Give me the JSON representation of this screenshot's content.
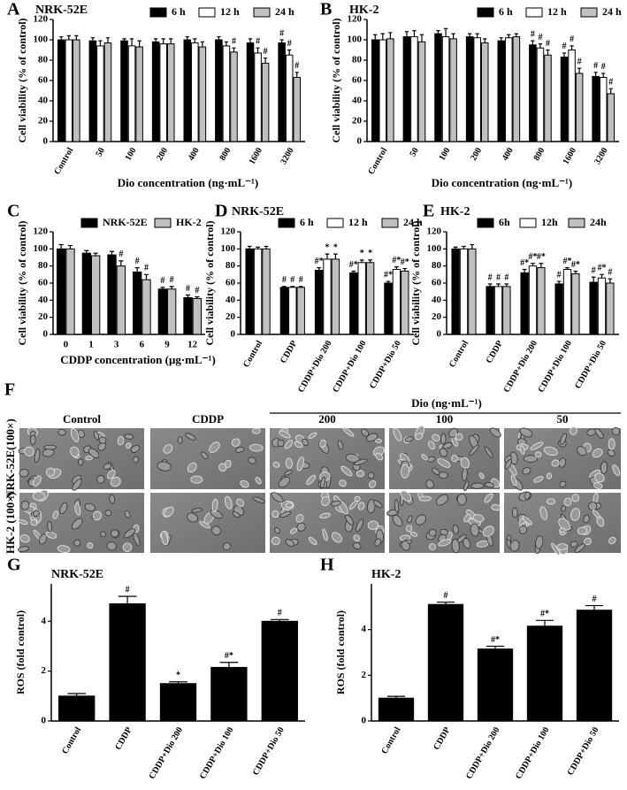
{
  "chart_data": [
    {
      "type": "bar",
      "panel": "A",
      "title": "NRK-52E",
      "categories": [
        "Control",
        "50",
        "100",
        "200",
        "400",
        "800",
        "1600",
        "3200"
      ],
      "rotate_labels": true,
      "x_label": "Dio concentration (ng·mL⁻¹)",
      "y_label": "Cell viability (% of control)",
      "ylim": [
        0,
        120
      ],
      "yticks": [
        0,
        20,
        40,
        60,
        80,
        100,
        120
      ],
      "series": [
        {
          "name": "6 h",
          "color": "#000000",
          "values": [
            100,
            99,
            99,
            98,
            100,
            100,
            97,
            97
          ],
          "errors": [
            3,
            3,
            2,
            3,
            3,
            3,
            4,
            3
          ],
          "annotations": [
            null,
            null,
            null,
            null,
            null,
            null,
            null,
            "#"
          ]
        },
        {
          "name": "12 h",
          "color": "#ffffff",
          "values": [
            100,
            94,
            94,
            96,
            97,
            94,
            87,
            85
          ],
          "errors": [
            4,
            5,
            7,
            5,
            4,
            4,
            5,
            5
          ],
          "annotations": [
            null,
            null,
            null,
            null,
            null,
            null,
            "#",
            "#"
          ]
        },
        {
          "name": "24 h",
          "color": "#c0c0c0",
          "values": [
            100,
            97,
            93,
            96,
            93,
            88,
            77,
            63
          ],
          "errors": [
            4,
            5,
            6,
            5,
            5,
            4,
            5,
            5
          ],
          "annotations": [
            null,
            null,
            null,
            null,
            null,
            "#",
            "#",
            "#"
          ]
        }
      ]
    },
    {
      "type": "bar",
      "panel": "B",
      "title": "HK-2",
      "categories": [
        "Control",
        "50",
        "100",
        "200",
        "400",
        "800",
        "1600",
        "3200"
      ],
      "rotate_labels": true,
      "x_label": "Dio concentration (ng·mL⁻¹)",
      "y_label": "Cell viability (% of control)",
      "ylim": [
        0,
        120
      ],
      "yticks": [
        0,
        20,
        40,
        60,
        80,
        100,
        120
      ],
      "series": [
        {
          "name": "6 h",
          "color": "#000000",
          "values": [
            100,
            103,
            106,
            103,
            99,
            95,
            83,
            64
          ],
          "errors": [
            5,
            5,
            3,
            3,
            3,
            4,
            4,
            4
          ],
          "annotations": [
            null,
            null,
            null,
            null,
            null,
            "#",
            "#",
            "#"
          ]
        },
        {
          "name": "12 h",
          "color": "#ffffff",
          "values": [
            100,
            103,
            103,
            102,
            102,
            92,
            90,
            63
          ],
          "errors": [
            6,
            6,
            8,
            4,
            3,
            4,
            4,
            4
          ],
          "annotations": [
            null,
            null,
            null,
            null,
            null,
            "#",
            "#",
            "#"
          ]
        },
        {
          "name": "24 h",
          "color": "#c0c0c0",
          "values": [
            101,
            98,
            101,
            97,
            103,
            85,
            67,
            47
          ],
          "errors": [
            6,
            7,
            5,
            4,
            3,
            5,
            5,
            5
          ],
          "annotations": [
            null,
            null,
            null,
            null,
            null,
            "#",
            "#",
            "#"
          ]
        }
      ]
    },
    {
      "type": "bar",
      "panel": "C",
      "categories": [
        "0",
        "1",
        "3",
        "6",
        "9",
        "12"
      ],
      "x_label": "CDDP concentration (μg·mL⁻¹)",
      "y_label": "Cell viability (% of control)",
      "ylim": [
        0,
        120
      ],
      "yticks": [
        0,
        20,
        40,
        60,
        80,
        100,
        120
      ],
      "series": [
        {
          "name": "NRK-52E",
          "color": "#000000",
          "values": [
            100,
            95,
            93,
            73,
            53,
            43
          ],
          "errors": [
            5,
            3,
            4,
            5,
            2,
            3
          ],
          "annotations": [
            null,
            null,
            null,
            "#",
            "#",
            "#"
          ]
        },
        {
          "name": "HK-2",
          "color": "#c0c0c0",
          "values": [
            100,
            92,
            80,
            64,
            53,
            42
          ],
          "errors": [
            4,
            3,
            6,
            6,
            3,
            2
          ],
          "annotations": [
            null,
            null,
            "#",
            "#",
            "#",
            "#"
          ]
        }
      ]
    },
    {
      "type": "bar",
      "panel": "D",
      "title": "NRK-52E",
      "categories": [
        "Control",
        "CDDP",
        "CDDP+Dio 200",
        "CDDP+Dio 100",
        "CDDP+Dio 50"
      ],
      "rotate_labels": true,
      "y_label": "Cell viability (% of control)",
      "ylim": [
        0,
        120
      ],
      "yticks": [
        0,
        20,
        40,
        60,
        80,
        100,
        120
      ],
      "series": [
        {
          "name": "6 h",
          "color": "#000000",
          "values": [
            100,
            55,
            75,
            72,
            60
          ],
          "errors": [
            3,
            1,
            3,
            2,
            2
          ],
          "annotations": [
            null,
            "#",
            "#*",
            "#*",
            "#*"
          ]
        },
        {
          "name": "12 h",
          "color": "#ffffff",
          "values": [
            100,
            55,
            88,
            84,
            76
          ],
          "errors": [
            2,
            1,
            6,
            3,
            3
          ],
          "annotations": [
            null,
            "#",
            "*",
            "*",
            "#*"
          ]
        },
        {
          "name": "24 h",
          "color": "#c0c0c0",
          "values": [
            100,
            55,
            88,
            84,
            74
          ],
          "errors": [
            3,
            1,
            6,
            3,
            3
          ],
          "annotations": [
            null,
            "#",
            "*",
            "*",
            "#*"
          ]
        }
      ]
    },
    {
      "type": "bar",
      "panel": "E",
      "title": "HK-2",
      "categories": [
        "Control",
        "CDDP",
        "CDDP+Dio 200",
        "CDDP+Dio 100",
        "CDDP+Dio 50"
      ],
      "rotate_labels": true,
      "y_label": "Cell viability (% of control)",
      "ylim": [
        0,
        120
      ],
      "yticks": [
        0,
        20,
        40,
        60,
        80,
        100,
        120
      ],
      "series": [
        {
          "name": "6h",
          "color": "#000000",
          "values": [
            100,
            56,
            72,
            59,
            61
          ],
          "errors": [
            2,
            3,
            4,
            3,
            6
          ],
          "annotations": [
            null,
            "#",
            "#*",
            "#",
            "#"
          ]
        },
        {
          "name": "12h",
          "color": "#ffffff",
          "values": [
            100,
            56,
            80,
            76,
            66
          ],
          "errors": [
            3,
            3,
            3,
            2,
            4
          ],
          "annotations": [
            null,
            "#",
            "#*",
            "#*",
            "#*"
          ]
        },
        {
          "name": "24h",
          "color": "#c0c0c0",
          "values": [
            100,
            56,
            78,
            71,
            60
          ],
          "errors": [
            5,
            3,
            5,
            3,
            5
          ],
          "annotations": [
            null,
            "#",
            "#*",
            "#*",
            "#"
          ]
        }
      ]
    },
    {
      "type": "bar",
      "panel": "G",
      "title": "NRK-52E",
      "categories": [
        "Control",
        "CDDP",
        "CDDP+Dio 200",
        "CDDP+Dio 100",
        "CDDP+Dio 50"
      ],
      "rotate_labels": true,
      "y_label": "ROS (fold control)",
      "ylim": [
        0,
        5.5
      ],
      "yticks": [
        0,
        2,
        4
      ],
      "color": "#000000",
      "values": [
        1.0,
        4.7,
        1.5,
        2.15,
        4.0
      ],
      "errors": [
        0.1,
        0.3,
        0.07,
        0.2,
        0.07
      ],
      "annotations": [
        null,
        "#",
        "*",
        "#*",
        "#"
      ]
    },
    {
      "type": "bar",
      "panel": "H",
      "title": "HK-2",
      "categories": [
        "Control",
        "CDDP",
        "CDDP+Dio 200",
        "CDDP+Dio 100",
        "CDDP+Dio 50"
      ],
      "rotate_labels": true,
      "y_label": "ROS (fold control)",
      "ylim": [
        0,
        6
      ],
      "yticks": [
        0,
        2,
        4
      ],
      "color": "#000000",
      "values": [
        1.0,
        5.1,
        3.15,
        4.15,
        4.85
      ],
      "errors": [
        0.08,
        0.1,
        0.12,
        0.25,
        0.2
      ],
      "annotations": [
        null,
        "#",
        "#*",
        "#*",
        "#"
      ]
    }
  ],
  "image_panel": {
    "panel": "F",
    "columns": [
      "Control",
      "CDDP",
      "200",
      "100",
      "50"
    ],
    "group_label": "Dio (ng·mL⁻¹)",
    "rows": [
      "NRK-52E(100×)",
      "HK-2 (100×)"
    ]
  }
}
